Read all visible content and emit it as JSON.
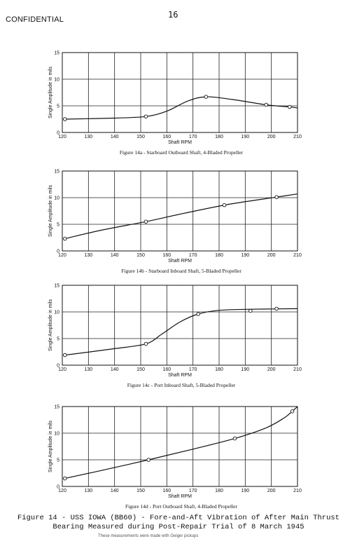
{
  "header": {
    "classification": "CONFIDENTIAL",
    "page_number": "16"
  },
  "figure_caption": {
    "line1": "Figure 14 - USS IOWA (BB60) - Fore-and-Aft Vibration of After Main Thrust",
    "line2": "Bearing Measured during Post-Repair Trial of 8 March 1945"
  },
  "footnote": "These measurements were made with Geiger pickups",
  "chart_data": [
    {
      "type": "line",
      "caption": "Figure 14a - Starboard Outboard Shaft, 4-Bladed Propeller",
      "xlabel": "Shaft RPM",
      "ylabel": "Single Amplitude in mils",
      "xlim": [
        120,
        210
      ],
      "ylim": [
        0,
        15
      ],
      "xticks": [
        "120",
        "130",
        "140",
        "150",
        "160",
        "170",
        "180",
        "190",
        "200",
        "210"
      ],
      "yticks": [
        "0",
        "5",
        "10",
        "15"
      ],
      "grid": true,
      "points": [
        [
          121,
          2.5
        ],
        [
          152,
          3.0
        ],
        [
          175,
          6.7
        ],
        [
          198,
          5.2
        ],
        [
          207,
          4.8
        ]
      ],
      "curve": [
        [
          121,
          2.5
        ],
        [
          140,
          2.7
        ],
        [
          152,
          3.0
        ],
        [
          160,
          4.0
        ],
        [
          168,
          5.9
        ],
        [
          175,
          6.7
        ],
        [
          185,
          6.2
        ],
        [
          198,
          5.2
        ],
        [
          207,
          4.8
        ],
        [
          210,
          4.6
        ]
      ]
    },
    {
      "type": "line",
      "caption": "Figure 14b - Starboard Inboard Shaft, 5-Bladed Propeller",
      "xlabel": "Shaft RPM",
      "ylabel": "Single Amplitude in mils",
      "xlim": [
        120,
        210
      ],
      "ylim": [
        0,
        15
      ],
      "xticks": [
        "120",
        "130",
        "140",
        "150",
        "160",
        "170",
        "180",
        "190",
        "200",
        "210"
      ],
      "yticks": [
        "0",
        "5",
        "10",
        "15"
      ],
      "grid": true,
      "points": [
        [
          121,
          2.3
        ],
        [
          152,
          5.5
        ],
        [
          182,
          8.6
        ],
        [
          202,
          10.1
        ]
      ],
      "curve": [
        [
          121,
          2.3
        ],
        [
          135,
          3.9
        ],
        [
          152,
          5.5
        ],
        [
          165,
          6.9
        ],
        [
          182,
          8.6
        ],
        [
          195,
          9.6
        ],
        [
          202,
          10.1
        ],
        [
          210,
          10.7
        ]
      ]
    },
    {
      "type": "line",
      "caption": "Figure 14c - Port Inboard Shaft, 5-Bladed Propeller",
      "xlabel": "Shaft RPM",
      "ylabel": "Single Amplitude in mils",
      "xlim": [
        120,
        210
      ],
      "ylim": [
        0,
        15
      ],
      "xticks": [
        "120",
        "130",
        "140",
        "150",
        "160",
        "170",
        "180",
        "190",
        "200",
        "210"
      ],
      "yticks": [
        "0",
        "5",
        "10",
        "15"
      ],
      "grid": true,
      "points": [
        [
          121,
          1.9
        ],
        [
          152,
          4.0
        ],
        [
          172,
          9.6
        ],
        [
          192,
          10.2
        ],
        [
          202,
          10.6
        ]
      ],
      "curve": [
        [
          121,
          1.9
        ],
        [
          140,
          3.1
        ],
        [
          152,
          4.0
        ],
        [
          158,
          5.8
        ],
        [
          165,
          8.1
        ],
        [
          172,
          9.6
        ],
        [
          180,
          10.3
        ],
        [
          192,
          10.5
        ],
        [
          210,
          10.6
        ]
      ]
    },
    {
      "type": "line",
      "caption": "Figure 14d - Port Outboard Shaft, 4-Bladed Propeller",
      "xlabel": "Shaft RPM",
      "ylabel": "Single Amplitude in mils",
      "xlim": [
        120,
        210
      ],
      "ylim": [
        0,
        15
      ],
      "xticks": [
        "120",
        "130",
        "140",
        "150",
        "160",
        "170",
        "180",
        "190",
        "200",
        "210"
      ],
      "yticks": [
        "0",
        "5",
        "10",
        "15"
      ],
      "grid": true,
      "points": [
        [
          121,
          1.5
        ],
        [
          153,
          5.0
        ],
        [
          186,
          9.0
        ],
        [
          208,
          14.1
        ]
      ],
      "curve": [
        [
          121,
          1.5
        ],
        [
          135,
          3.0
        ],
        [
          153,
          5.0
        ],
        [
          170,
          7.0
        ],
        [
          186,
          9.0
        ],
        [
          198,
          11.0
        ],
        [
          205,
          12.9
        ],
        [
          208,
          14.1
        ],
        [
          210,
          15.0
        ]
      ]
    }
  ]
}
